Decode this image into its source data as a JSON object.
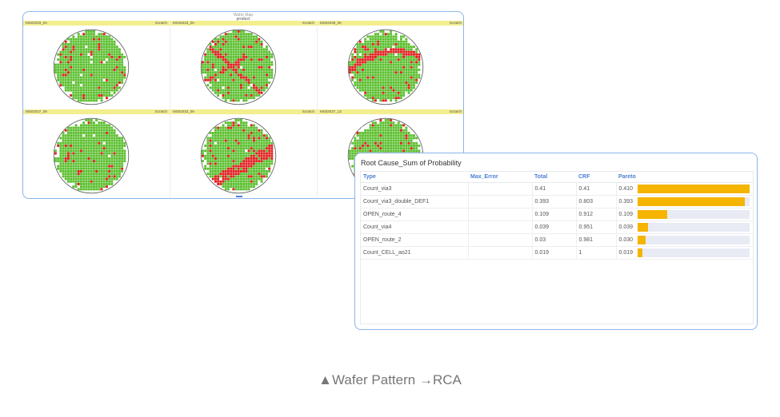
{
  "wafer_panel": {
    "title": "Wafer Map",
    "subtitle": "product",
    "cells": [
      {
        "id": "MS02033_04",
        "label": "Scratch",
        "pattern": "random"
      },
      {
        "id": "MS45033_05",
        "label": "Scratch",
        "pattern": "diagonal"
      },
      {
        "id": "MS02038_06",
        "label": "Scratch",
        "pattern": "arc"
      },
      {
        "id": "MS02037_08",
        "label": "Scratch",
        "pattern": "random"
      },
      {
        "id": "MS02033_09",
        "label": "Scratch",
        "pattern": "band"
      },
      {
        "id": "MS02037_13",
        "label": "Scratch",
        "pattern": "cluster"
      }
    ],
    "colors": {
      "good": "#5bbf2f",
      "defect": "#e02020",
      "empty": "#ffffff"
    }
  },
  "rca_panel": {
    "title": "Root Cause_Sum of Probability",
    "columns": [
      "Type",
      "Max_Error",
      "Total",
      "CRF",
      "Pareto"
    ],
    "rows": [
      {
        "type": "Count_via3",
        "max_error": "",
        "total": "0.41",
        "crf": "0.41",
        "pareto": "0.410",
        "pareto_value": 0.41
      },
      {
        "type": "Count_via3_double_DEF1",
        "max_error": "",
        "total": "0.393",
        "crf": "0.803",
        "pareto": "0.393",
        "pareto_value": 0.393
      },
      {
        "type": "OPEN_route_4",
        "max_error": "",
        "total": "0.109",
        "crf": "0.912",
        "pareto": "0.109",
        "pareto_value": 0.109
      },
      {
        "type": "Count_via4",
        "max_error": "",
        "total": "0.039",
        "crf": "0.951",
        "pareto": "0.039",
        "pareto_value": 0.039
      },
      {
        "type": "OPEN_route_2",
        "max_error": "",
        "total": "0.03",
        "crf": "0.981",
        "pareto": "0.030",
        "pareto_value": 0.03
      },
      {
        "type": "Count_CELL_ao21",
        "max_error": "",
        "total": "0.019",
        "crf": "1",
        "pareto": "0.019",
        "pareto_value": 0.019
      }
    ],
    "pareto_max": 0.41,
    "bar_color": "#f5b400"
  },
  "caption": {
    "icon": "triangle-up-icon",
    "text": "▲Wafer Pattern →RCA"
  }
}
